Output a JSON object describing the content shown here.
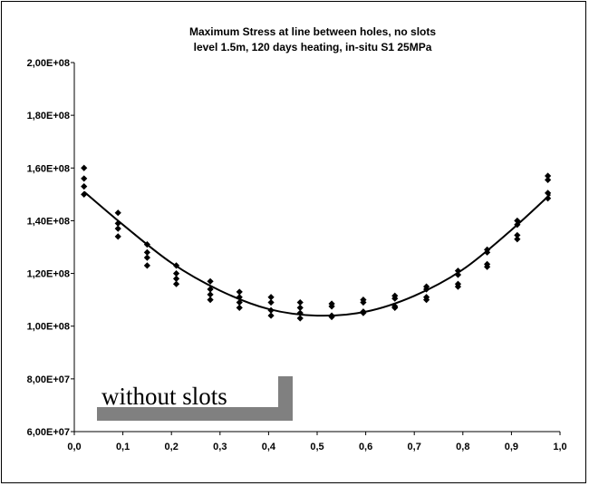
{
  "chart_data": {
    "type": "scatter",
    "title_lines": [
      "Maximum Stress at line between holes, no slots",
      "level 1.5m, 120 days heating, in-situ S1 25MPa"
    ],
    "xlabel": "",
    "ylabel": "",
    "xlim": [
      0,
      1
    ],
    "ylim": [
      60000000,
      200000000
    ],
    "x_tick_labels": [
      "0,0",
      "0,1",
      "0,2",
      "0,3",
      "0,4",
      "0,5",
      "0,6",
      "0,7",
      "0,8",
      "0,9",
      "1,0"
    ],
    "y_tick_labels": [
      "6,00E+07",
      "8,00E+07",
      "1,00E+08",
      "1,20E+08",
      "1,40E+08",
      "1,60E+08",
      "1,80E+08",
      "2,00E+08"
    ],
    "grid": false,
    "legend": "none",
    "marker_color": "#000000",
    "points": [
      [
        0.02,
        160000000
      ],
      [
        0.02,
        156000000
      ],
      [
        0.02,
        153000000
      ],
      [
        0.02,
        150000000
      ],
      [
        0.09,
        143000000
      ],
      [
        0.09,
        139000000
      ],
      [
        0.09,
        137000000
      ],
      [
        0.09,
        134000000
      ],
      [
        0.15,
        131000000
      ],
      [
        0.15,
        128000000
      ],
      [
        0.15,
        126000000
      ],
      [
        0.15,
        123000000
      ],
      [
        0.21,
        123000000
      ],
      [
        0.21,
        120000000
      ],
      [
        0.21,
        118000000
      ],
      [
        0.21,
        116000000
      ],
      [
        0.28,
        117000000
      ],
      [
        0.28,
        114000000
      ],
      [
        0.28,
        112000000
      ],
      [
        0.28,
        110000000
      ],
      [
        0.34,
        113000000
      ],
      [
        0.34,
        111000000
      ],
      [
        0.34,
        109000000
      ],
      [
        0.34,
        107000000
      ],
      [
        0.405,
        111000000
      ],
      [
        0.405,
        109000000
      ],
      [
        0.405,
        106000000
      ],
      [
        0.405,
        104000000
      ],
      [
        0.465,
        109000000
      ],
      [
        0.465,
        107000000
      ],
      [
        0.465,
        105000000
      ],
      [
        0.465,
        103000000
      ],
      [
        0.53,
        108500000
      ],
      [
        0.53,
        107500000
      ],
      [
        0.53,
        104000000
      ],
      [
        0.53,
        103500000
      ],
      [
        0.595,
        110000000
      ],
      [
        0.595,
        109000000
      ],
      [
        0.595,
        105500000
      ],
      [
        0.595,
        105000000
      ],
      [
        0.66,
        111500000
      ],
      [
        0.66,
        110500000
      ],
      [
        0.66,
        107500000
      ],
      [
        0.66,
        107000000
      ],
      [
        0.725,
        115000000
      ],
      [
        0.725,
        114000000
      ],
      [
        0.725,
        111000000
      ],
      [
        0.725,
        110000000
      ],
      [
        0.79,
        121000000
      ],
      [
        0.79,
        119500000
      ],
      [
        0.79,
        116000000
      ],
      [
        0.79,
        115000000
      ],
      [
        0.85,
        129000000
      ],
      [
        0.85,
        128000000
      ],
      [
        0.85,
        123500000
      ],
      [
        0.85,
        122500000
      ],
      [
        0.912,
        140000000
      ],
      [
        0.912,
        138500000
      ],
      [
        0.912,
        134500000
      ],
      [
        0.912,
        133000000
      ],
      [
        0.975,
        157000000
      ],
      [
        0.975,
        155500000
      ],
      [
        0.975,
        150500000
      ],
      [
        0.975,
        148500000
      ]
    ],
    "trendline": {
      "type": "polynomial",
      "x": [
        0.02,
        0.1,
        0.2,
        0.3,
        0.4,
        0.5,
        0.6,
        0.7,
        0.8,
        0.9,
        0.98
      ],
      "y": [
        151000000,
        138500000,
        124000000,
        113500000,
        106500000,
        104000000,
        105500000,
        111500000,
        121500000,
        136500000,
        150000000
      ]
    },
    "annotation": "without slots",
    "annotation_bracket_color": "#808080"
  }
}
